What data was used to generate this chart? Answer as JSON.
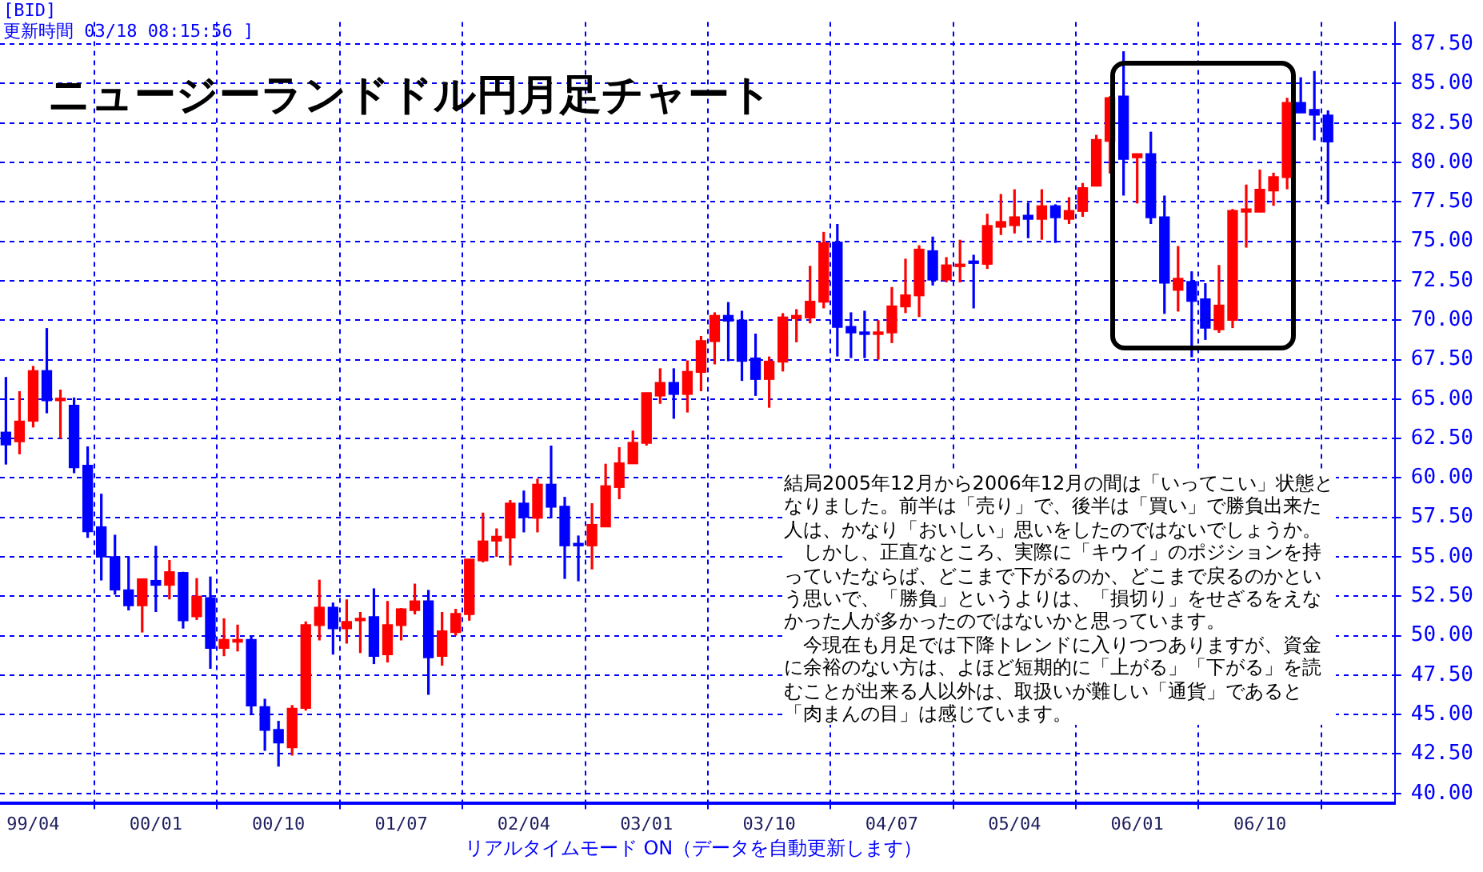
{
  "chart_data": {
    "type": "candlestick",
    "title": "ニュージーランドドル円月足チャート",
    "annotations": [
      "[BID]",
      "更新時間 03/18 08:15:56 ]",
      "結局2005年12月から2006年12月の間は「いってこい」状態となりました。前半は「売り」で、後半は「買い」で勝負出来た人は、かなり「おいしい」思いをしたのではないでしょうか。",
      "しかし、正直なところ、実際に「キウイ」のポジションを持っていたならば、どこまで下がるのか、どこまで戻るのかという思いで、「勝負」というよりは、「損切り」をせざるをえなかった人が多かったのではないかと思っています。",
      "今現在も月足では下降トレンドに入りつつありますが、資金に余裕のない方は、よほど短期的に「上がる」「下がる」を読むことが出来る人以外は、取扱いが難しい「通貨」であると「肉まんの目」は感じています。",
      "リアルタイムモード ON（データを自動更新します）"
    ],
    "x": [
      "1999-02",
      "1999-03",
      "1999-04",
      "1999-05",
      "1999-06",
      "1999-07",
      "1999-08",
      "1999-09",
      "1999-10",
      "1999-11",
      "1999-12",
      "2000-01",
      "2000-02",
      "2000-03",
      "2000-04",
      "2000-05",
      "2000-06",
      "2000-07",
      "2000-08",
      "2000-09",
      "2000-10",
      "2000-11",
      "2000-12",
      "2001-01",
      "2001-02",
      "2001-03",
      "2001-04",
      "2001-05",
      "2001-06",
      "2001-07",
      "2001-08",
      "2001-09",
      "2001-10",
      "2001-11",
      "2001-12",
      "2002-01",
      "2002-02",
      "2002-03",
      "2002-04",
      "2002-05",
      "2002-06",
      "2002-07",
      "2002-08",
      "2002-09",
      "2002-10",
      "2002-11",
      "2002-12",
      "2003-01",
      "2003-02",
      "2003-03",
      "2003-04",
      "2003-05",
      "2003-06",
      "2003-07",
      "2003-08",
      "2003-09",
      "2003-10",
      "2003-11",
      "2003-12",
      "2004-01",
      "2004-02",
      "2004-03",
      "2004-04",
      "2004-05",
      "2004-06",
      "2004-07",
      "2004-08",
      "2004-09",
      "2004-10",
      "2004-11",
      "2004-12",
      "2005-01",
      "2005-02",
      "2005-03",
      "2005-04",
      "2005-05",
      "2005-06",
      "2005-07",
      "2005-08",
      "2005-09",
      "2005-10",
      "2005-11",
      "2005-12",
      "2006-01",
      "2006-02",
      "2006-03",
      "2006-04",
      "2006-05",
      "2006-06",
      "2006-07",
      "2006-08",
      "2006-09",
      "2006-10",
      "2006-11",
      "2006-12",
      "2007-01",
      "2007-02",
      "2007-03"
    ],
    "ohlc": [
      [
        62.9,
        66.4,
        60.85,
        62.1
      ],
      [
        62.3,
        65.5,
        61.5,
        63.6
      ],
      [
        63.6,
        67.1,
        63.2,
        66.8
      ],
      [
        66.8,
        69.5,
        64.1,
        64.9
      ],
      [
        64.9,
        65.6,
        62.5,
        65.0
      ],
      [
        64.6,
        65.1,
        60.3,
        60.65
      ],
      [
        60.8,
        62.0,
        56.2,
        56.6
      ],
      [
        56.9,
        59.0,
        53.5,
        55.0
      ],
      [
        55.0,
        56.4,
        52.6,
        52.9
      ],
      [
        52.9,
        55.0,
        51.6,
        51.9
      ],
      [
        51.9,
        53.6,
        50.2,
        53.6
      ],
      [
        53.5,
        55.7,
        51.5,
        53.2
      ],
      [
        53.2,
        54.8,
        52.3,
        54.05
      ],
      [
        54.0,
        54.05,
        50.45,
        50.95
      ],
      [
        51.2,
        53.65,
        51.0,
        52.5
      ],
      [
        52.4,
        53.75,
        47.9,
        49.2
      ],
      [
        49.2,
        51.1,
        48.7,
        49.75
      ],
      [
        49.6,
        50.7,
        49.0,
        49.75
      ],
      [
        49.75,
        50.0,
        45.05,
        45.55
      ],
      [
        45.5,
        46.0,
        42.7,
        44.0
      ],
      [
        44.05,
        44.6,
        41.7,
        43.2
      ],
      [
        42.9,
        45.6,
        42.4,
        45.4
      ],
      [
        45.4,
        50.9,
        45.25,
        50.7
      ],
      [
        50.65,
        53.55,
        49.7,
        51.8
      ],
      [
        51.8,
        52.1,
        48.8,
        50.45
      ],
      [
        50.45,
        52.3,
        49.5,
        50.9
      ],
      [
        50.95,
        51.5,
        48.9,
        51.1
      ],
      [
        51.2,
        53.0,
        48.2,
        48.7
      ],
      [
        48.8,
        52.2,
        48.3,
        50.7
      ],
      [
        50.65,
        51.75,
        49.7,
        51.7
      ],
      [
        51.6,
        53.3,
        51.35,
        52.2
      ],
      [
        52.2,
        52.9,
        46.25,
        48.6
      ],
      [
        48.7,
        51.5,
        48.1,
        50.3
      ],
      [
        50.2,
        51.7,
        50.0,
        51.4
      ],
      [
        51.35,
        54.85,
        50.95,
        54.85
      ],
      [
        54.75,
        57.8,
        54.65,
        56.0
      ],
      [
        56.0,
        56.8,
        55.0,
        56.3
      ],
      [
        56.2,
        58.6,
        54.45,
        58.4
      ],
      [
        58.4,
        59.2,
        56.55,
        57.5
      ],
      [
        57.45,
        59.95,
        56.55,
        59.6
      ],
      [
        59.6,
        62.05,
        57.45,
        58.15
      ],
      [
        58.2,
        58.8,
        53.6,
        55.7
      ],
      [
        55.75,
        56.35,
        53.45,
        55.7
      ],
      [
        55.7,
        58.4,
        54.2,
        57.05
      ],
      [
        56.9,
        60.9,
        56.9,
        59.5
      ],
      [
        59.4,
        61.95,
        58.65,
        60.95
      ],
      [
        60.9,
        63.0,
        60.9,
        62.25
      ],
      [
        62.2,
        65.4,
        62.05,
        65.4
      ],
      [
        65.2,
        66.95,
        64.7,
        66.05
      ],
      [
        66.05,
        66.95,
        63.75,
        65.3
      ],
      [
        65.3,
        67.45,
        64.15,
        66.75
      ],
      [
        66.7,
        69.0,
        65.5,
        68.7
      ],
      [
        68.65,
        70.5,
        67.2,
        70.3
      ],
      [
        70.3,
        71.15,
        67.4,
        69.95
      ],
      [
        70.0,
        70.6,
        66.15,
        67.4
      ],
      [
        67.6,
        69.15,
        65.2,
        66.25
      ],
      [
        66.25,
        67.7,
        64.45,
        67.4
      ],
      [
        67.35,
        70.45,
        66.75,
        70.2
      ],
      [
        70.1,
        70.7,
        68.6,
        70.3
      ],
      [
        70.15,
        73.45,
        69.8,
        71.2
      ],
      [
        71.15,
        75.6,
        70.75,
        74.9
      ],
      [
        74.95,
        76.1,
        67.7,
        69.55
      ],
      [
        69.6,
        70.5,
        67.6,
        69.2
      ],
      [
        69.2,
        70.6,
        67.6,
        69.1
      ],
      [
        69.1,
        70.0,
        67.5,
        69.2
      ],
      [
        69.2,
        72.1,
        68.55,
        70.9
      ],
      [
        70.85,
        73.9,
        70.45,
        71.6
      ],
      [
        71.55,
        74.75,
        70.2,
        74.5
      ],
      [
        74.4,
        75.3,
        72.2,
        72.55
      ],
      [
        72.55,
        74.0,
        72.4,
        73.5
      ],
      [
        73.4,
        75.1,
        72.4,
        73.45
      ],
      [
        73.7,
        74.15,
        70.75,
        73.6
      ],
      [
        73.55,
        76.75,
        73.25,
        76.0
      ],
      [
        75.9,
        78.0,
        75.4,
        76.25
      ],
      [
        76.0,
        78.3,
        75.5,
        76.55
      ],
      [
        76.65,
        77.45,
        75.2,
        76.4
      ],
      [
        76.4,
        78.3,
        75.1,
        77.25
      ],
      [
        77.25,
        77.35,
        74.9,
        76.5
      ],
      [
        76.4,
        77.8,
        76.1,
        76.95
      ],
      [
        76.9,
        78.7,
        76.55,
        78.4
      ],
      [
        78.5,
        81.75,
        78.5,
        81.45
      ],
      [
        81.35,
        84.2,
        79.3,
        84.1
      ],
      [
        84.2,
        87.05,
        77.9,
        80.2
      ],
      [
        80.3,
        80.55,
        77.4,
        80.55
      ],
      [
        80.55,
        81.95,
        76.1,
        76.5
      ],
      [
        76.55,
        77.9,
        70.4,
        72.35
      ],
      [
        71.9,
        74.7,
        70.55,
        72.65
      ],
      [
        72.45,
        73.1,
        67.65,
        71.2
      ],
      [
        71.35,
        72.35,
        68.75,
        69.5
      ],
      [
        69.4,
        73.5,
        69.2,
        70.95
      ],
      [
        70.0,
        77.05,
        69.5,
        76.95
      ],
      [
        76.85,
        78.6,
        74.6,
        77.05
      ],
      [
        76.85,
        79.55,
        76.85,
        78.3
      ],
      [
        78.2,
        79.35,
        77.25,
        79.1
      ],
      [
        79.05,
        84.1,
        78.3,
        83.8
      ],
      [
        83.8,
        85.4,
        83.15,
        83.15
      ],
      [
        83.35,
        85.8,
        81.4,
        83.0
      ],
      [
        83.0,
        83.3,
        77.35,
        81.3
      ]
    ],
    "colors": [
      "#0000ff",
      "#ff0000",
      "#ff0000",
      "#0000ff",
      "#ff0000",
      "#0000ff",
      "#0000ff",
      "#0000ff",
      "#0000ff",
      "#0000ff",
      "#ff0000",
      "#0000ff",
      "#ff0000",
      "#0000ff",
      "#ff0000",
      "#0000ff",
      "#ff0000",
      "#ff0000",
      "#0000ff",
      "#0000ff",
      "#0000ff",
      "#ff0000",
      "#ff0000",
      "#ff0000",
      "#0000ff",
      "#ff0000",
      "#ff0000",
      "#0000ff",
      "#ff0000",
      "#ff0000",
      "#ff0000",
      "#0000ff",
      "#ff0000",
      "#ff0000",
      "#ff0000",
      "#ff0000",
      "#ff0000",
      "#ff0000",
      "#0000ff",
      "#ff0000",
      "#0000ff",
      "#0000ff",
      "#0000ff",
      "#ff0000",
      "#ff0000",
      "#ff0000",
      "#ff0000",
      "#ff0000",
      "#ff0000",
      "#0000ff",
      "#ff0000",
      "#ff0000",
      "#ff0000",
      "#0000ff",
      "#0000ff",
      "#0000ff",
      "#ff0000",
      "#ff0000",
      "#ff0000",
      "#ff0000",
      "#ff0000",
      "#0000ff",
      "#0000ff",
      "#0000ff",
      "#ff0000",
      "#ff0000",
      "#ff0000",
      "#ff0000",
      "#0000ff",
      "#ff0000",
      "#ff0000",
      "#0000ff",
      "#ff0000",
      "#ff0000",
      "#ff0000",
      "#0000ff",
      "#ff0000",
      "#0000ff",
      "#ff0000",
      "#ff0000",
      "#ff0000",
      "#ff0000",
      "#0000ff",
      "#ff0000",
      "#0000ff",
      "#0000ff",
      "#ff0000",
      "#0000ff",
      "#0000ff",
      "#ff0000",
      "#ff0000",
      "#ff0000",
      "#ff0000",
      "#ff0000",
      "#ff0000",
      "#0000ff",
      "#0000ff",
      "#0000ff"
    ],
    "xlim": [
      "1999-01-18",
      "2007-07-28"
    ],
    "xticks": [
      {
        "value": "1999-04",
        "label": "99/04"
      },
      {
        "value": "2000-01",
        "label": "00/01"
      },
      {
        "value": "2000-10",
        "label": "00/10"
      },
      {
        "value": "2001-07",
        "label": "01/07"
      },
      {
        "value": "2002-04",
        "label": "02/04"
      },
      {
        "value": "2003-01",
        "label": "03/01"
      },
      {
        "value": "2003-10",
        "label": "03/10"
      },
      {
        "value": "2004-07",
        "label": "04/07"
      },
      {
        "value": "2005-04",
        "label": "05/04"
      },
      {
        "value": "2006-01",
        "label": "06/01"
      },
      {
        "value": "2006-10",
        "label": "06/10"
      }
    ],
    "ylim": [
      39.4,
      88.9
    ],
    "yticks": [
      {
        "value": 40,
        "label": "40.00"
      },
      {
        "value": 42.5,
        "label": "42.50"
      },
      {
        "value": 45,
        "label": "45.00"
      },
      {
        "value": 47.5,
        "label": "47.50"
      },
      {
        "value": 50,
        "label": "50.00"
      },
      {
        "value": 52.5,
        "label": "52.50"
      },
      {
        "value": 55,
        "label": "55.00"
      },
      {
        "value": 57.5,
        "label": "57.50"
      },
      {
        "value": 60,
        "label": "60.00"
      },
      {
        "value": 62.5,
        "label": "62.50"
      },
      {
        "value": 65,
        "label": "65.00"
      },
      {
        "value": 67.5,
        "label": "67.50"
      },
      {
        "value": 70,
        "label": "70.00"
      },
      {
        "value": 72.5,
        "label": "72.50"
      },
      {
        "value": 75,
        "label": "75.00"
      },
      {
        "value": 77.5,
        "label": "77.50"
      },
      {
        "value": 80,
        "label": "80.00"
      },
      {
        "value": 82.5,
        "label": "82.50"
      },
      {
        "value": 85,
        "label": "85.00"
      },
      {
        "value": 87.5,
        "label": "87.50"
      }
    ],
    "grid": true
  }
}
